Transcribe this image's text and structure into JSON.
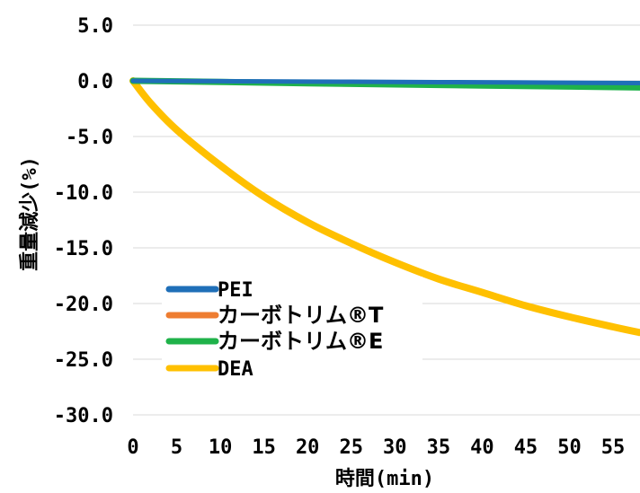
{
  "chart_data": {
    "type": "line",
    "title": "",
    "xlabel": "時間(min)",
    "ylabel": "重量減少(%)",
    "xlim": [
      0,
      58
    ],
    "ylim": [
      -30,
      5
    ],
    "x_ticks": [
      0,
      5,
      10,
      15,
      20,
      25,
      30,
      35,
      40,
      45,
      50,
      55
    ],
    "x_tick_labels": [
      "0",
      "5",
      "10",
      "15",
      "20",
      "25",
      "30",
      "35",
      "40",
      "45",
      "50",
      "55"
    ],
    "y_ticks": [
      5,
      0,
      -5,
      -10,
      -15,
      -20,
      -25,
      -30
    ],
    "y_tick_labels": [
      "5.0",
      "0.0",
      "-5.0",
      "-10.0",
      "-15.0",
      "-20.0",
      "-25.0",
      "-30.0"
    ],
    "grid": "horizontal",
    "legend_position": "bottom-left",
    "series": [
      {
        "name": "PEI",
        "color": "#1f6fb8",
        "x": [
          0,
          10,
          20,
          30,
          40,
          50,
          58
        ],
        "y": [
          0,
          -0.03,
          -0.07,
          -0.1,
          -0.13,
          -0.17,
          -0.2
        ]
      },
      {
        "name": "カーボトリム®T",
        "color": "#ee7d31",
        "x": [
          0,
          10,
          20,
          30,
          40,
          50,
          58
        ],
        "y": [
          0,
          -0.1,
          -0.2,
          -0.3,
          -0.4,
          -0.5,
          -0.55
        ]
      },
      {
        "name": "カーボトリム®E",
        "color": "#1fb24a",
        "x": [
          0,
          10,
          20,
          30,
          40,
          50,
          58
        ],
        "y": [
          0,
          -0.1,
          -0.22,
          -0.32,
          -0.42,
          -0.52,
          -0.6
        ]
      },
      {
        "name": "DEA",
        "color": "#ffc000",
        "x": [
          0,
          2,
          5,
          10,
          15,
          20,
          25,
          30,
          35,
          40,
          45,
          50,
          55,
          58
        ],
        "y": [
          0,
          -2.0,
          -4.4,
          -7.6,
          -10.4,
          -12.7,
          -14.6,
          -16.3,
          -17.8,
          -19.0,
          -20.2,
          -21.2,
          -22.1,
          -22.6
        ]
      }
    ],
    "legend": {
      "entries": [
        {
          "label": "PEI",
          "color": "#1f6fb8"
        },
        {
          "label": "カーボトリム®T",
          "color": "#ee7d31"
        },
        {
          "label": "カーボトリム®E",
          "color": "#1fb24a"
        },
        {
          "label": "DEA",
          "color": "#ffc000"
        }
      ]
    }
  }
}
